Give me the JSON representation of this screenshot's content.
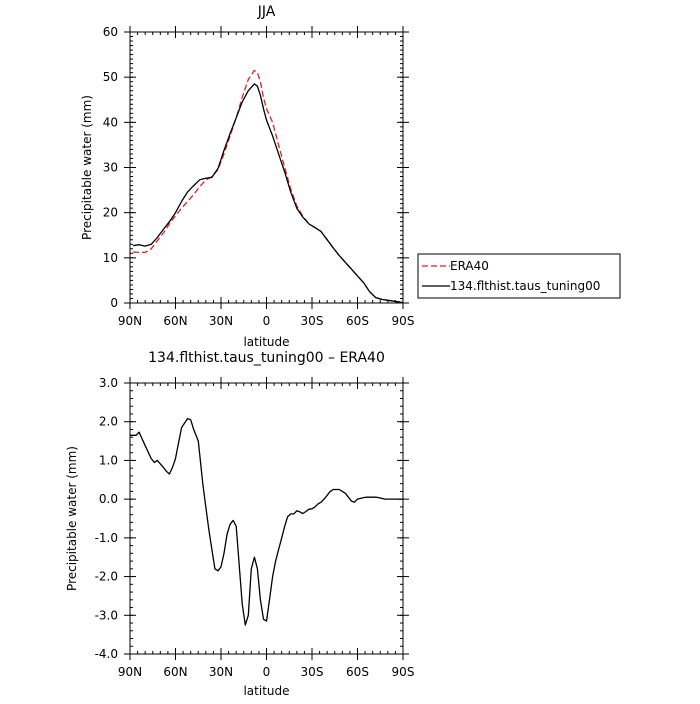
{
  "chart_data": [
    {
      "type": "line",
      "title": "JJA",
      "xlabel": "latitude",
      "ylabel": "Precipitable water (mm)",
      "xlim": [
        90,
        -90
      ],
      "ylim": [
        0,
        60
      ],
      "x_ticks": [
        90,
        60,
        30,
        0,
        -30,
        -60,
        -90
      ],
      "x_tick_labels": [
        "90N",
        "60N",
        "30N",
        "0",
        "30S",
        "60S",
        "90S"
      ],
      "y_ticks": [
        0,
        10,
        20,
        30,
        40,
        50,
        60
      ],
      "y_tick_labels": [
        "0",
        "10",
        "20",
        "30",
        "40",
        "50",
        "60"
      ],
      "grid": false,
      "legend_position": "right",
      "series": [
        {
          "name": "ERA40",
          "color": "#e0201b",
          "dash": true,
          "x": [
            88,
            84,
            80,
            76,
            72,
            68,
            64,
            60,
            56,
            52,
            48,
            44,
            40,
            36,
            32,
            28,
            24,
            20,
            16,
            12,
            8,
            6,
            4,
            2,
            0,
            -4,
            -8,
            -12,
            -16,
            -20,
            -24,
            -28,
            -32,
            -36,
            -40,
            -44,
            -48,
            -52,
            -56,
            -60,
            -64,
            -68,
            -72,
            -76,
            -80,
            -84,
            -88,
            -90
          ],
          "y": [
            11.3,
            11.2,
            11.2,
            12.0,
            13.8,
            15.5,
            17.5,
            19.3,
            21.0,
            22.5,
            24.0,
            25.8,
            27.2,
            28.0,
            29.5,
            33.0,
            37.0,
            41.0,
            45.5,
            49.5,
            51.5,
            51.0,
            49.0,
            45.5,
            43.0,
            40.0,
            35.0,
            30.0,
            25.2,
            21.5,
            19.2,
            17.5,
            16.7,
            15.8,
            14.0,
            12.2,
            10.5,
            9.0,
            7.5,
            6.0,
            4.5,
            2.5,
            1.2,
            0.8,
            0.6,
            0.4,
            0.2,
            0.1
          ]
        },
        {
          "name": "134.flthist.taus_tuning00",
          "color": "#000000",
          "dash": false,
          "x": [
            88,
            84,
            80,
            76,
            72,
            68,
            64,
            60,
            56,
            52,
            48,
            44,
            40,
            36,
            32,
            28,
            24,
            20,
            16,
            12,
            8,
            6,
            4,
            2,
            0,
            -4,
            -8,
            -12,
            -16,
            -20,
            -24,
            -28,
            -32,
            -36,
            -40,
            -44,
            -48,
            -52,
            -56,
            -60,
            -64,
            -68,
            -72,
            -76,
            -80,
            -84,
            -88,
            -90
          ],
          "y": [
            12.7,
            12.9,
            12.6,
            13.0,
            14.5,
            16.3,
            18.0,
            20.0,
            22.5,
            24.6,
            26.0,
            27.3,
            27.6,
            27.8,
            29.8,
            33.8,
            37.5,
            41.0,
            44.5,
            47.0,
            48.5,
            48.0,
            46.0,
            43.0,
            40.5,
            37.0,
            33.0,
            29.0,
            24.5,
            21.0,
            19.0,
            17.5,
            16.7,
            15.8,
            14.0,
            12.2,
            10.5,
            9.0,
            7.5,
            6.0,
            4.5,
            2.5,
            1.2,
            0.8,
            0.6,
            0.4,
            0.2,
            0.1
          ]
        }
      ]
    },
    {
      "type": "line",
      "title": "134.flthist.taus_tuning00 – ERA40",
      "xlabel": "latitude",
      "ylabel": "Precipitable water (mm)",
      "xlim": [
        90,
        -90
      ],
      "ylim": [
        -4,
        3
      ],
      "x_ticks": [
        90,
        60,
        30,
        0,
        -30,
        -60,
        -90
      ],
      "x_tick_labels": [
        "90N",
        "60N",
        "30N",
        "0",
        "30S",
        "60S",
        "90S"
      ],
      "y_ticks": [
        3,
        2,
        1,
        0,
        -1,
        -2,
        -3,
        -4
      ],
      "y_tick_labels": [
        "3.0",
        "2.0",
        "1.0",
        "0.0",
        "-1.0",
        "-2.0",
        "-3.0",
        "-4.0"
      ],
      "grid": false,
      "series": [
        {
          "color": "#000000",
          "dash": false,
          "x": [
            90,
            86,
            84,
            80,
            76,
            74,
            72,
            68,
            66,
            64,
            62,
            60,
            58,
            56,
            52,
            50,
            48,
            45,
            42,
            40,
            38,
            36,
            34,
            32,
            30,
            28,
            26,
            24,
            22,
            20,
            18,
            16,
            14,
            12,
            10,
            8,
            6,
            4,
            2,
            0,
            -2,
            -4,
            -6,
            -8,
            -10,
            -12,
            -14,
            -16,
            -18,
            -20,
            -22,
            -24,
            -26,
            -28,
            -30,
            -32,
            -34,
            -36,
            -38,
            -40,
            -42,
            -44,
            -46,
            -48,
            -50,
            -52,
            -54,
            -56,
            -58,
            -60,
            -62,
            -64,
            -66,
            -68,
            -70,
            -72,
            -74,
            -76,
            -78,
            -80,
            -82,
            -84,
            -86,
            -88,
            -90
          ],
          "y": [
            1.65,
            1.65,
            1.73,
            1.38,
            1.05,
            0.95,
            1.0,
            0.82,
            0.72,
            0.65,
            0.82,
            1.05,
            1.45,
            1.85,
            2.08,
            2.05,
            1.8,
            1.5,
            0.4,
            -0.2,
            -0.8,
            -1.3,
            -1.8,
            -1.85,
            -1.75,
            -1.4,
            -0.9,
            -0.65,
            -0.55,
            -0.7,
            -1.7,
            -2.7,
            -3.25,
            -3.0,
            -1.8,
            -1.5,
            -1.8,
            -2.6,
            -3.1,
            -3.15,
            -2.6,
            -2.0,
            -1.6,
            -1.3,
            -1.0,
            -0.7,
            -0.45,
            -0.38,
            -0.38,
            -0.3,
            -0.33,
            -0.37,
            -0.32,
            -0.26,
            -0.25,
            -0.2,
            -0.12,
            -0.08,
            0.0,
            0.1,
            0.2,
            0.25,
            0.25,
            0.25,
            0.2,
            0.15,
            0.05,
            -0.05,
            -0.08,
            0.0,
            0.02,
            0.04,
            0.05,
            0.05,
            0.05,
            0.05,
            0.04,
            0.02,
            0.0,
            0.0,
            0.0,
            0.0,
            0.0,
            0.0,
            0.0
          ]
        }
      ]
    }
  ]
}
